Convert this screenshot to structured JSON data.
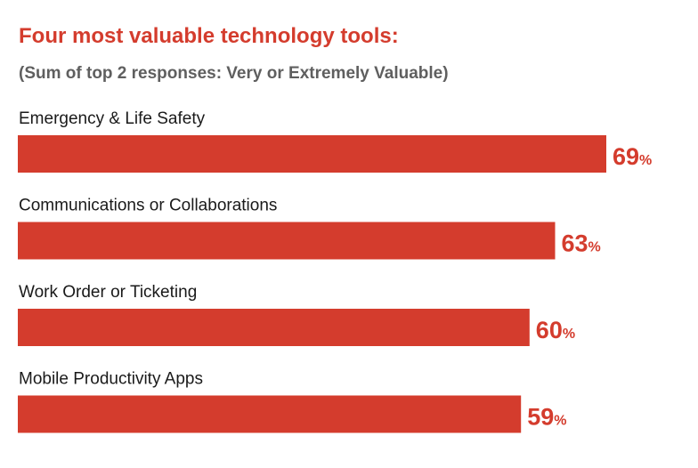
{
  "chart_data": {
    "type": "bar",
    "orientation": "horizontal",
    "title": "Four most valuable technology tools:",
    "subtitle": "(Sum of top 2 responses: Very or Extremely Valuable)",
    "categories": [
      "Emergency & Life Safety",
      "Communications or Collaborations",
      "Work Order or Ticketing",
      "Mobile Productivity Apps"
    ],
    "values": [
      69,
      63,
      60,
      59
    ],
    "unit": "%",
    "bar_color": "#d43c2d",
    "label_color": "#d43c2d",
    "grid": false,
    "legend": "none"
  }
}
